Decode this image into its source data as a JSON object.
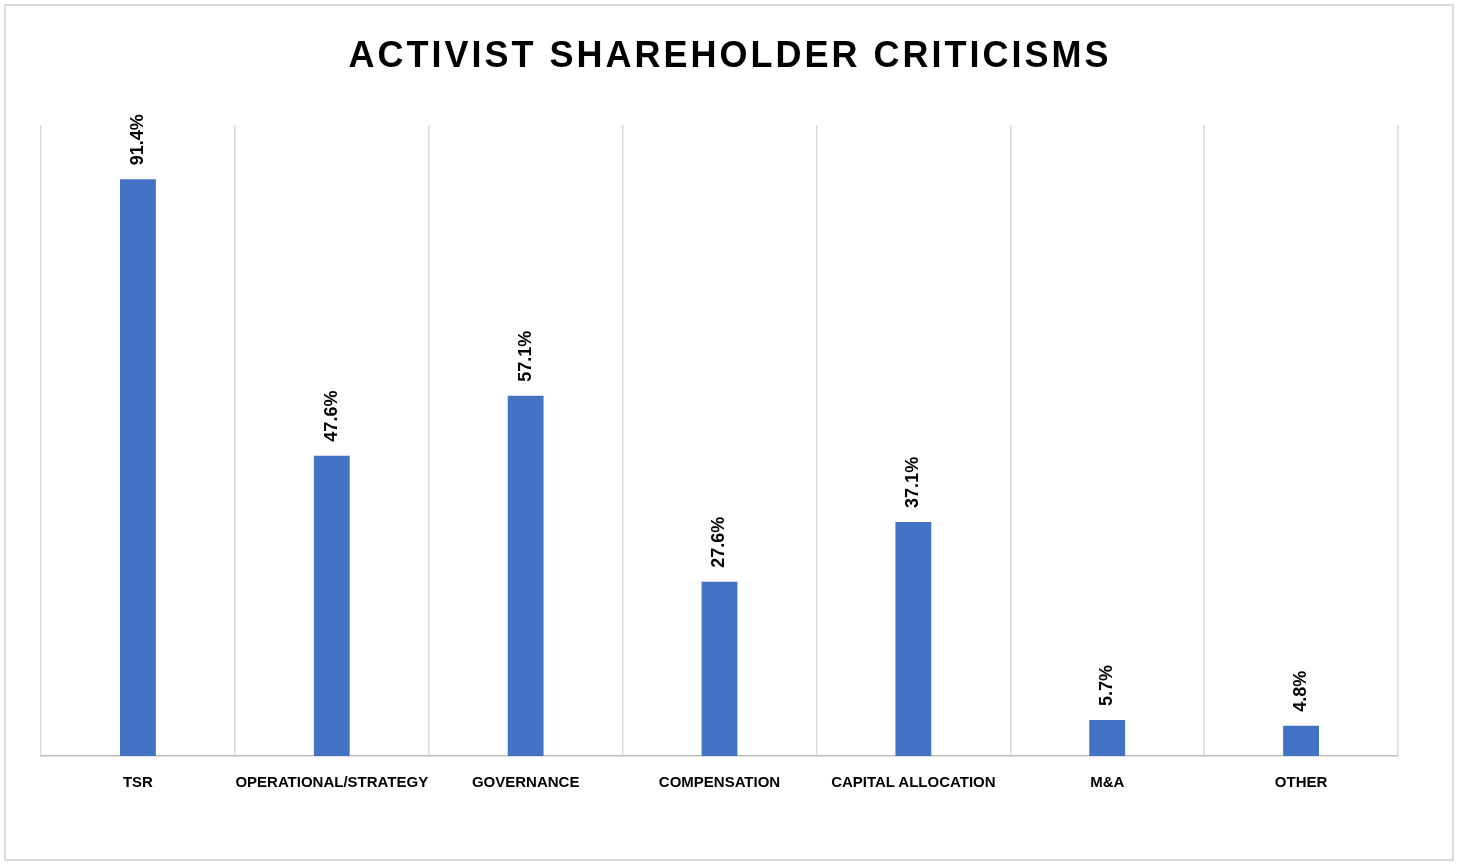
{
  "chart_data": {
    "type": "bar",
    "title": "ACTIVIST SHAREHOLDER CRITICISMS",
    "categories": [
      "TSR",
      "OPERATIONAL/STRATEGY",
      "GOVERNANCE",
      "COMPENSATION",
      "CAPITAL ALLOCATION",
      "M&A",
      "OTHER"
    ],
    "values": [
      91.4,
      47.6,
      57.1,
      27.6,
      37.1,
      5.7,
      4.8
    ],
    "value_labels": [
      "91.4%",
      "47.6%",
      "57.1%",
      "27.6%",
      "37.1%",
      "5.7%",
      "4.8%"
    ],
    "color": "#4472c4",
    "ylim": [
      0,
      100
    ],
    "grid": "x",
    "tick_labels": "x",
    "legend": false
  }
}
